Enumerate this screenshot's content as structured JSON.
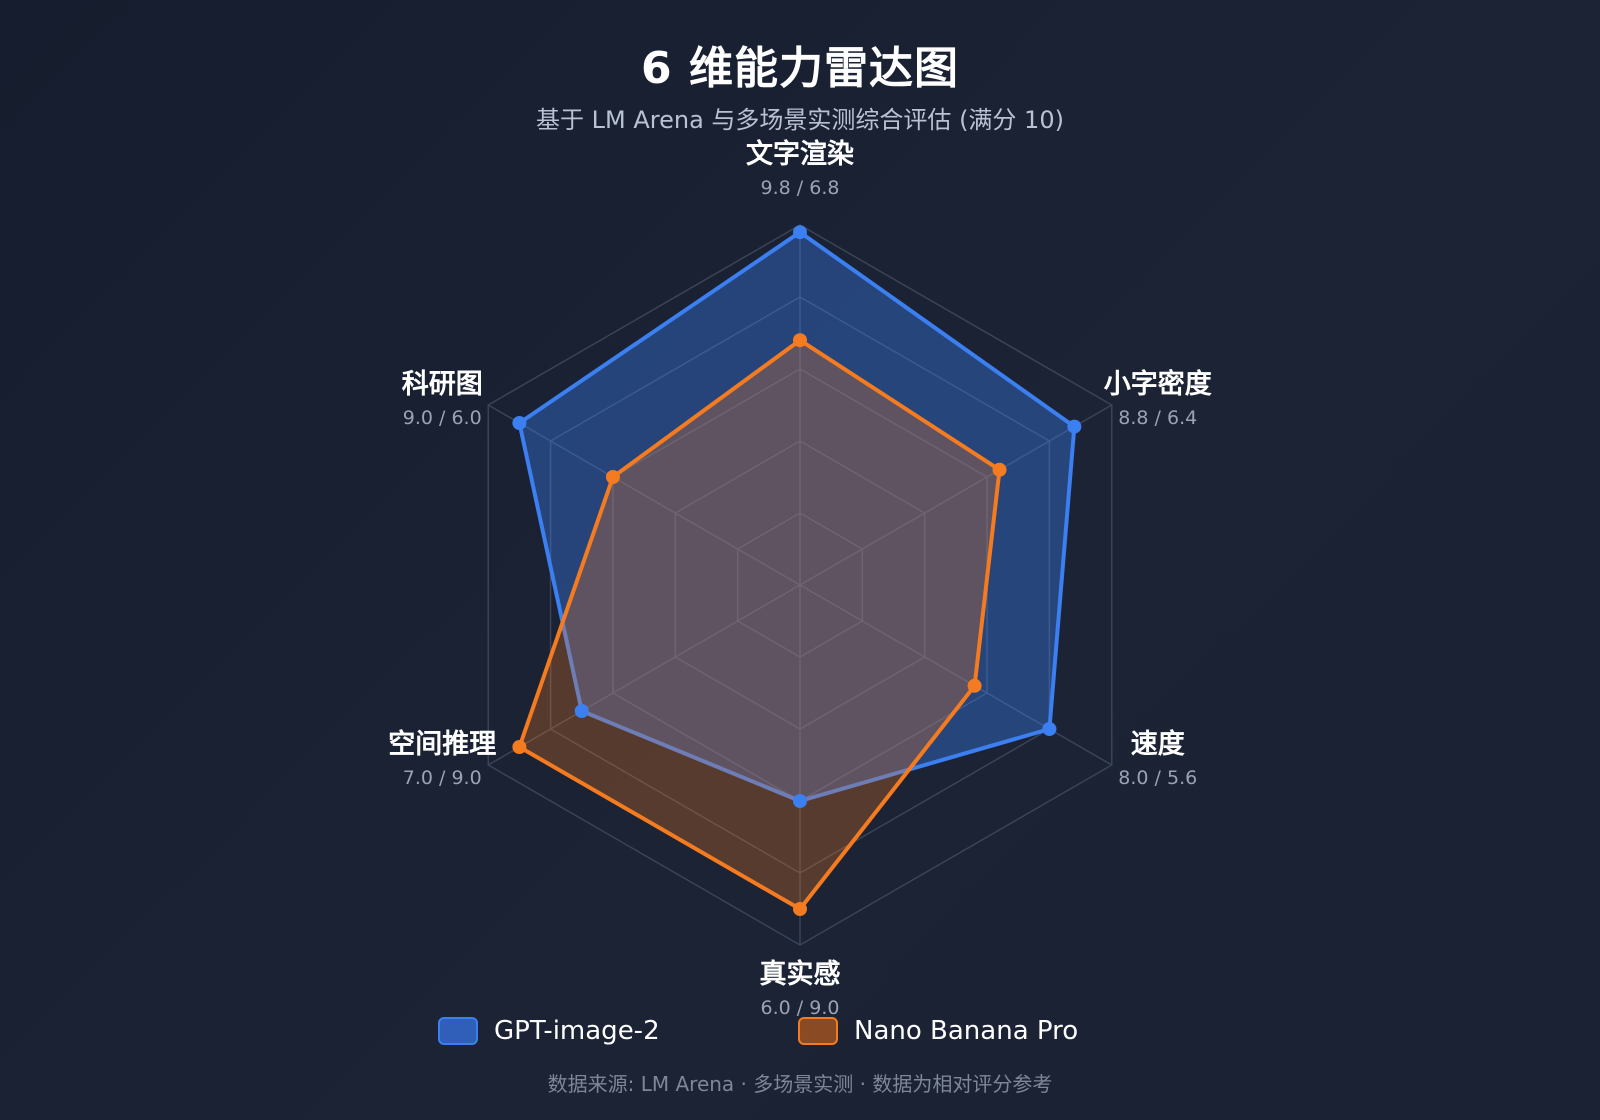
{
  "title": "6 维能力雷达图",
  "subtitle": "基于 LM Arena 与多场景实测综合评估 (满分 10)",
  "footer": "数据来源: LM Arena · 多场景实测 · 数据为相对评分参考",
  "colors": {
    "gpt": "#3b7ff0",
    "nano": "#f47b20",
    "grid": "#3a4458",
    "axis_label": "#ffffff",
    "value_label": "#9aa3b2"
  },
  "chart_data": {
    "type": "radar",
    "title": "6 维能力雷达图",
    "subtitle": "基于 LM Arena 与多场景实测综合评估 (满分 10)",
    "categories": [
      "文字渲染",
      "小字密度",
      "速度",
      "真实感",
      "空间推理",
      "科研图"
    ],
    "value_labels": [
      "9.8 / 6.8",
      "8.8 / 6.4",
      "8.0 / 5.6",
      "6.0 / 9.0",
      "7.0 / 9.0",
      "9.0 / 6.0"
    ],
    "range": [
      0,
      10
    ],
    "grid_levels": 5,
    "legend_position": "bottom",
    "series": [
      {
        "name": "GPT-image-2",
        "values": [
          9.8,
          8.8,
          8.0,
          6.0,
          7.0,
          9.0
        ],
        "color": "#3b7ff0"
      },
      {
        "name": "Nano Banana Pro",
        "values": [
          6.8,
          6.4,
          5.6,
          9.0,
          9.0,
          6.0
        ],
        "color": "#f47b20"
      }
    ]
  }
}
